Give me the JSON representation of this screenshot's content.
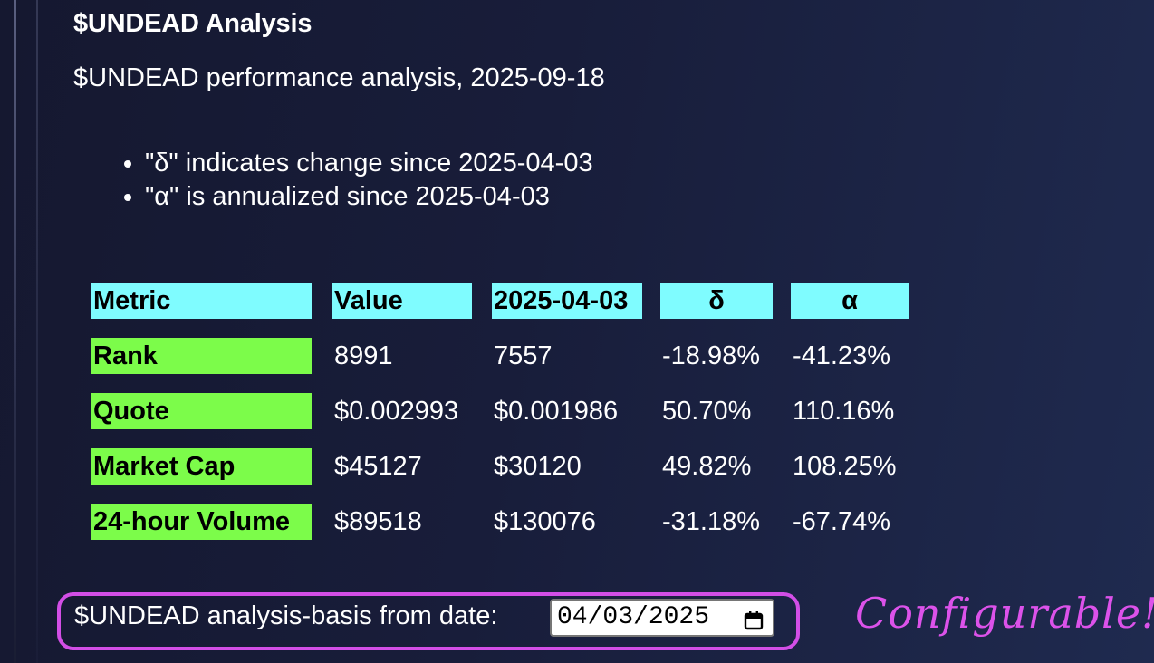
{
  "page": {
    "title": "$UNDEAD Analysis",
    "subtitle": "$UNDEAD performance analysis, 2025-09-18",
    "notes": [
      "\"δ\" indicates change since 2025-04-03",
      "\"α\" is annualized since 2025-04-03"
    ]
  },
  "table": {
    "headers": [
      "Metric",
      "Value",
      "2025-04-03",
      "δ",
      "α"
    ],
    "rows": [
      [
        "Rank",
        "8991",
        "7557",
        "-18.98%",
        "-41.23%"
      ],
      [
        "Quote",
        "$0.002993",
        "$0.001986",
        "50.70%",
        "110.16%"
      ],
      [
        "Market Cap",
        "$45127",
        "$30120",
        "49.82%",
        "108.25%"
      ],
      [
        "24-hour Volume",
        "$89518",
        "$130076",
        "-31.18%",
        "-67.74%"
      ]
    ]
  },
  "config": {
    "label": "$UNDEAD analysis-basis from date:",
    "date_value": "04/03/2025",
    "callout": "Configurable!"
  },
  "icons": {
    "date_picker": "calendar-icon"
  },
  "colors": {
    "header_bg": "#7ffcff",
    "label_bg": "#7cfc4a",
    "accent": "#d24ee6",
    "background": "#181d3a"
  }
}
